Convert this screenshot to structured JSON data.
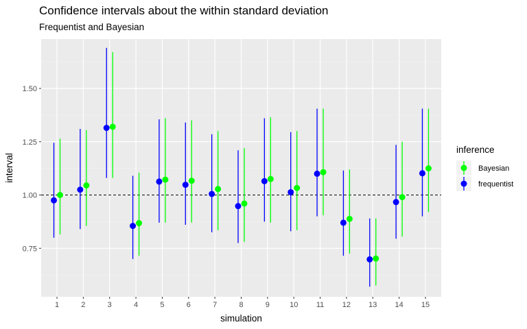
{
  "chart_data": {
    "type": "errorbar-scatter",
    "title": "Confidence intervals about the within standard deviation",
    "subtitle": "Frequentist and Bayesian",
    "xlabel": "simulation",
    "ylabel": "interval",
    "categories": [
      "1",
      "2",
      "3",
      "4",
      "5",
      "6",
      "7",
      "8",
      "9",
      "10",
      "11",
      "12",
      "13",
      "14",
      "15"
    ],
    "yticks": [
      0.75,
      1.0,
      1.25,
      1.5
    ],
    "ytick_labels": [
      "0.75",
      "1.00",
      "1.25",
      "1.50"
    ],
    "ylim": [
      0.55,
      1.75
    ],
    "reference_line": 1.0,
    "grid": true,
    "legend": {
      "title": "inference",
      "placement": "right"
    },
    "series": [
      {
        "name": "frequentist",
        "color": "#0000ff",
        "values": [
          0.975,
          1.025,
          1.315,
          0.855,
          1.063,
          1.048,
          1.005,
          0.948,
          1.065,
          1.013,
          1.1,
          0.87,
          0.698,
          0.967,
          1.102
        ],
        "lower": [
          0.8,
          0.84,
          1.08,
          0.7,
          0.87,
          0.86,
          0.825,
          0.775,
          0.875,
          0.83,
          0.9,
          0.715,
          0.57,
          0.795,
          0.9
        ],
        "upper": [
          1.245,
          1.31,
          1.69,
          1.09,
          1.355,
          1.34,
          1.285,
          1.21,
          1.36,
          1.295,
          1.405,
          1.115,
          0.89,
          1.235,
          1.405
        ]
      },
      {
        "name": "Bayesian",
        "color": "#00ff00",
        "values": [
          1.0,
          1.045,
          1.32,
          0.868,
          1.072,
          1.067,
          1.028,
          0.96,
          1.075,
          1.033,
          1.107,
          0.888,
          0.702,
          0.99,
          1.125
        ],
        "lower": [
          0.815,
          0.855,
          1.08,
          0.715,
          0.87,
          0.87,
          0.835,
          0.78,
          0.87,
          0.835,
          0.905,
          0.725,
          0.575,
          0.805,
          0.92
        ],
        "upper": [
          1.265,
          1.305,
          1.67,
          1.105,
          1.36,
          1.35,
          1.3,
          1.22,
          1.365,
          1.3,
          1.405,
          1.12,
          0.89,
          1.25,
          1.405
        ]
      }
    ]
  }
}
